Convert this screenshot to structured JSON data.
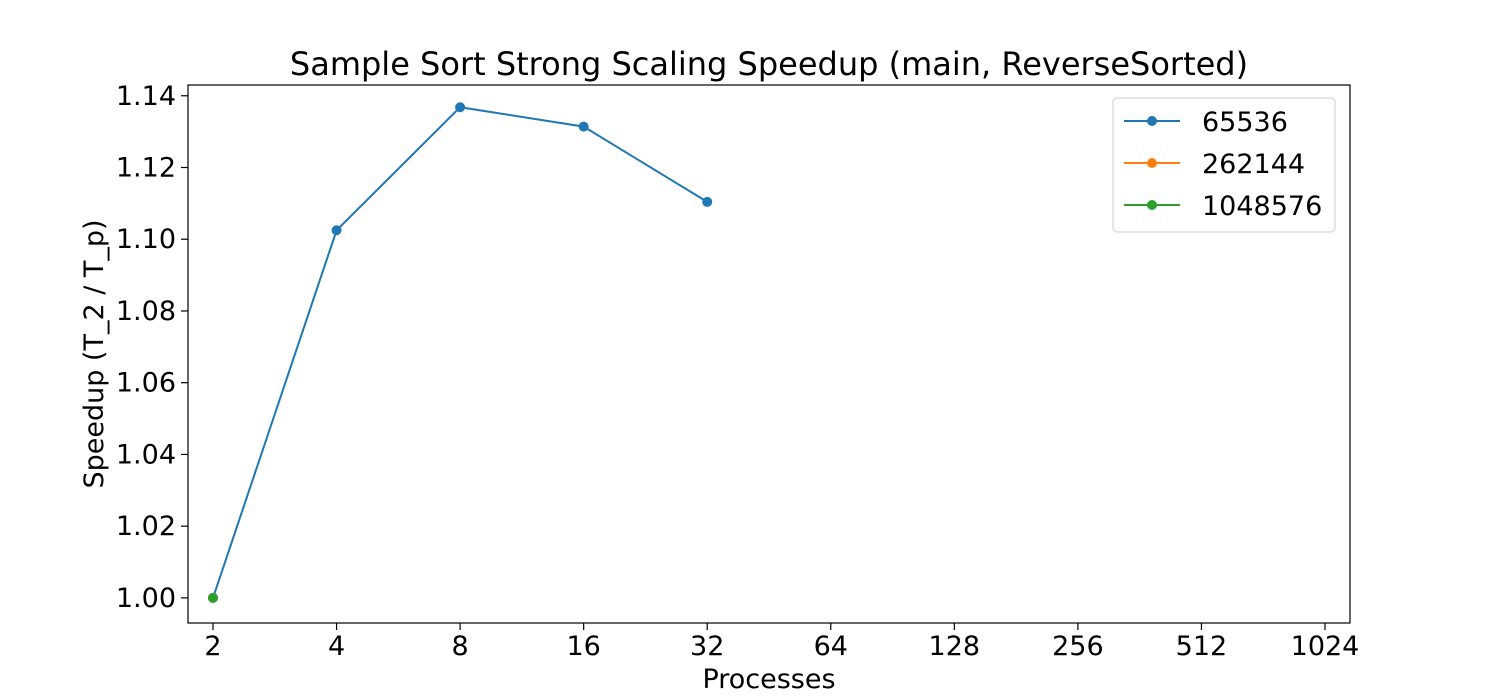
{
  "chart_data": {
    "type": "line",
    "title": "Sample Sort Strong Scaling Speedup (main, ReverseSorted)",
    "xlabel": "Processes",
    "ylabel": "Speedup (T_2 / T_p)",
    "x_scale": "log2",
    "x_ticks": [
      "2",
      "4",
      "8",
      "16",
      "32",
      "64",
      "128",
      "256",
      "512",
      "1024"
    ],
    "xlim": [
      2,
      1024
    ],
    "y_ticks": [
      "1.00",
      "1.02",
      "1.04",
      "1.06",
      "1.08",
      "1.10",
      "1.12",
      "1.14"
    ],
    "ylim": [
      0.993,
      1.143
    ],
    "grid": false,
    "legend_placement": "top-right",
    "series": [
      {
        "name": "65536",
        "color": "#1f77b4",
        "x": [
          2,
          4,
          8,
          16,
          32
        ],
        "values": [
          1.0,
          1.1025,
          1.1368,
          1.1314,
          1.1104
        ]
      },
      {
        "name": "262144",
        "color": "#ff7f0e",
        "x": [
          2
        ],
        "values": [
          1.0
        ]
      },
      {
        "name": "1048576",
        "color": "#2ca02c",
        "x": [
          2
        ],
        "values": [
          1.0
        ]
      }
    ]
  }
}
